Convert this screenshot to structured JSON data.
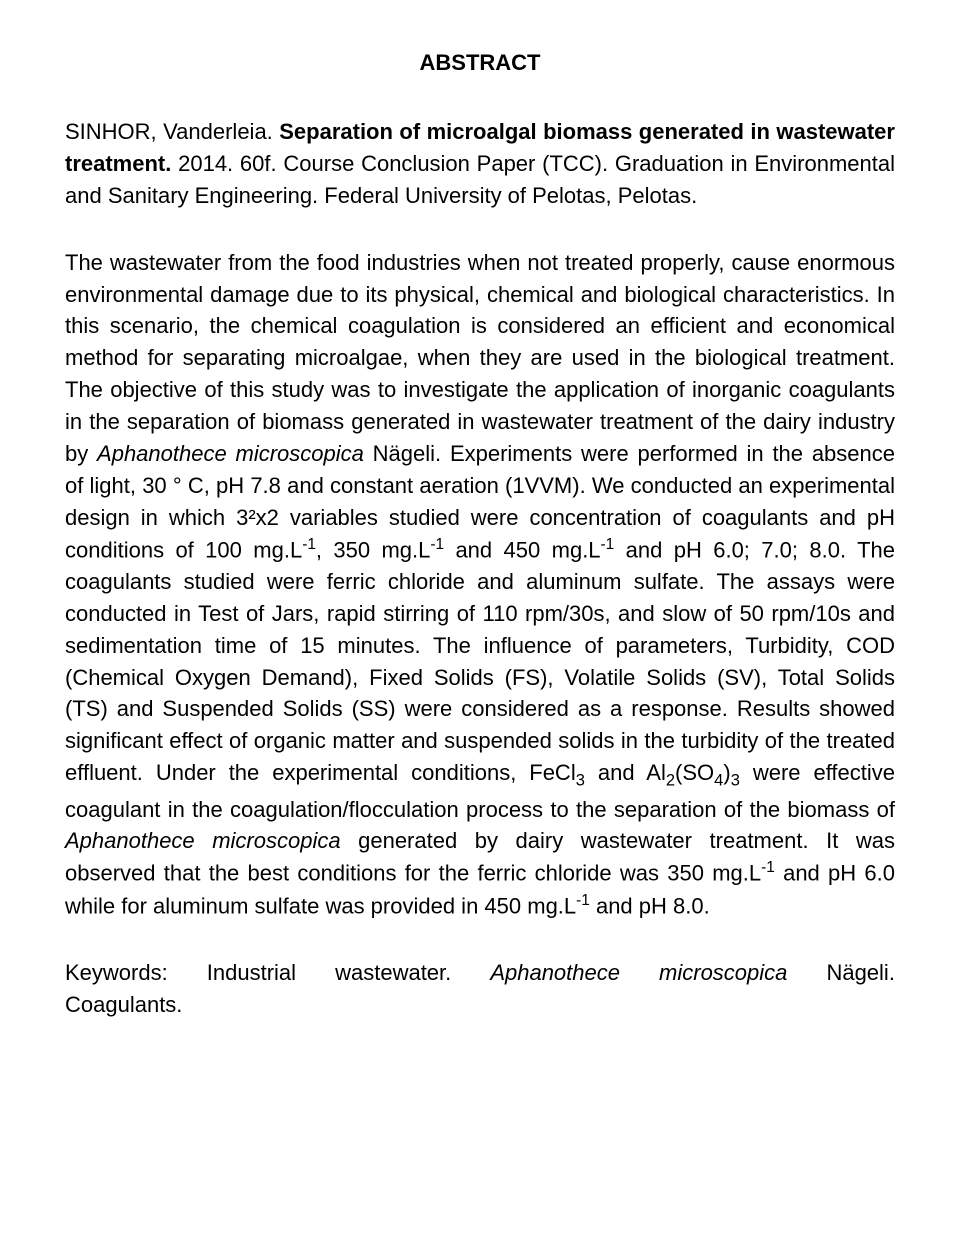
{
  "heading": "ABSTRACT",
  "citation": {
    "author": "SINHOR, Vanderleia. ",
    "title_bold": "Separation of microalgal biomass generated in wastewater treatment.",
    "rest": " 2014. 60f. Course Conclusion Paper (TCC). Graduation in Environmental and Sanitary Engineering. Federal University of Pelotas, Pelotas."
  },
  "body": {
    "p1_a": "The wastewater from the food industries when not treated properly, cause enormous environmental damage due to its physical, chemical and biological characteristics. In this scenario, the chemical coagulation is considered an efficient and economical method for separating microalgae, when they are used in the biological treatment. The objective of this study was to investigate the application of inorganic coagulants in the separation of biomass generated in wastewater treatment of the dairy industry by ",
    "p1_italic1": "Aphanothece microscopica",
    "p1_b": " Nägeli. Experiments were performed in the absence of light, 30 ° C, pH 7.8 and constant aeration (1VVM). We conducted an experimental design in which 3²x2 variables studied were concentration of coagulants and pH conditions of 100 mg.L",
    "sup1": "-1",
    "p1_c": ", 350 mg.L",
    "sup2": "-1",
    "p1_d": " and 450 mg.L",
    "sup3": "-1",
    "p1_e": " and pH 6.0; 7.0; 8.0. The coagulants studied were ferric chloride and aluminum sulfate. The assays were conducted in Test of Jars, rapid stirring of 110 rpm/30s, and slow of 50 rpm/10s and sedimentation time of 15 minutes. The influence of parameters, Turbidity, COD (Chemical Oxygen Demand), Fixed Solids (FS), Volatile Solids (SV), Total Solids (TS) and Suspended Solids (SS) were considered as a response. Results showed significant effect of organic matter and suspended solids in the turbidity of the treated effluent. Under the experimental conditions, FeCl",
    "sub1": "3",
    "p1_f": " and Al",
    "sub2": "2",
    "p1_g": "(SO",
    "sub3": "4",
    "p1_h": ")",
    "sub4": "3",
    "p1_i": " were effective coagulant in the coagulation/flocculation process to the separation of the biomass of ",
    "p1_italic2": "Aphanothece microscopica",
    "p1_j": " generated by dairy wastewater treatment. It was observed that the best conditions for the ferric chloride was 350 mg.L",
    "sup4": "-1",
    "p1_k": " and pH 6.0 while for aluminum sulfate was provided in 450 mg.L",
    "sup5": "-1",
    "p1_l": " and pH 8.0."
  },
  "keywords": {
    "kw_label": "Keywords:",
    "kw1": "Industrial",
    "kw2": "wastewater.",
    "kw3_italic": "Aphanothece",
    "kw4_italic": "microscopica",
    "kw5": "Nägeli.",
    "line2": "Coagulants."
  }
}
